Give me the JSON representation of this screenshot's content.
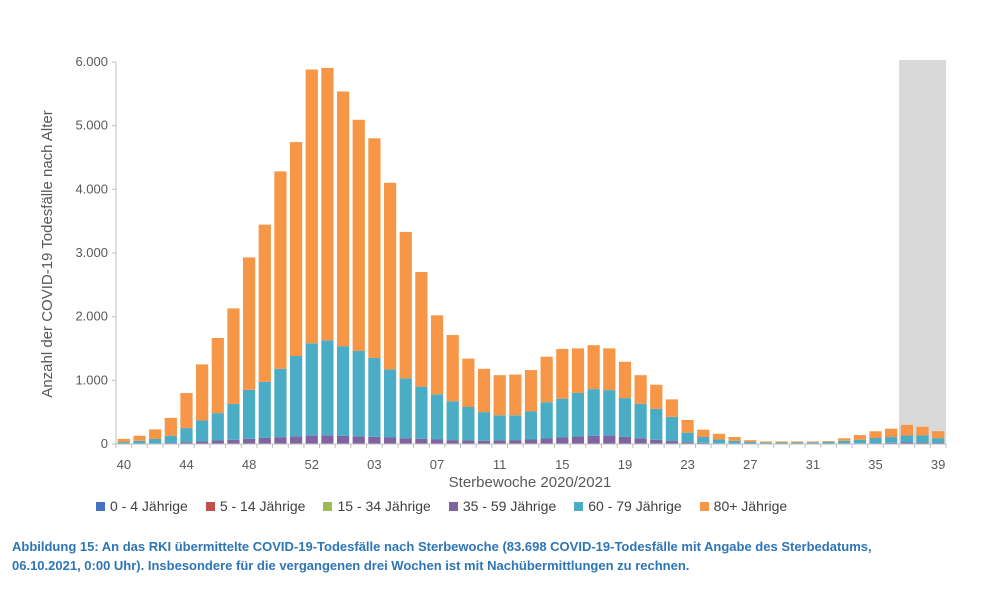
{
  "chart_data": {
    "type": "bar",
    "stacked": true,
    "title": "",
    "xlabel": "Sterbewoche 2020/2021",
    "ylabel": "Anzahl der COVID-19 Todesfälle nach Alter",
    "ylim": [
      0,
      6000
    ],
    "yticks": [
      0,
      1000,
      2000,
      3000,
      4000,
      5000,
      6000
    ],
    "ytick_labels": [
      "0",
      "1.000",
      "2.000",
      "3.000",
      "4.000",
      "5.000",
      "6.000"
    ],
    "xtick_labels": [
      "40",
      "44",
      "48",
      "52",
      "03",
      "07",
      "11",
      "15",
      "19",
      "23",
      "27",
      "31",
      "35",
      "39"
    ],
    "xtick_every": 4,
    "grid": false,
    "legend_position": "bottom",
    "shaded_last_weeks": 3,
    "categories": [
      "40",
      "41",
      "42",
      "43",
      "44",
      "45",
      "46",
      "47",
      "48",
      "49",
      "50",
      "51",
      "52",
      "53",
      "01",
      "02",
      "03",
      "04",
      "05",
      "06",
      "07",
      "08",
      "09",
      "10",
      "11",
      "12",
      "13",
      "14",
      "15",
      "16",
      "17",
      "18",
      "19",
      "20",
      "21",
      "22",
      "23",
      "24",
      "25",
      "26",
      "27",
      "28",
      "29",
      "30",
      "31",
      "32",
      "33",
      "34",
      "35",
      "36",
      "37",
      "38",
      "39"
    ],
    "series": [
      {
        "name": "0 - 4 Jährige",
        "color": "#4472c4",
        "values": [
          0,
          0,
          0,
          0,
          0,
          0,
          0,
          0,
          0,
          0,
          0,
          0,
          0,
          0,
          0,
          0,
          0,
          0,
          0,
          0,
          0,
          0,
          0,
          0,
          0,
          0,
          0,
          0,
          0,
          0,
          0,
          0,
          0,
          0,
          0,
          0,
          0,
          0,
          0,
          0,
          0,
          0,
          0,
          0,
          0,
          0,
          0,
          0,
          0,
          0,
          0,
          0,
          0
        ]
      },
      {
        "name": "5 - 14 Jährige",
        "color": "#c0504d",
        "values": [
          0,
          0,
          0,
          0,
          0,
          0,
          0,
          0,
          0,
          0,
          0,
          0,
          0,
          0,
          0,
          0,
          0,
          0,
          0,
          0,
          0,
          0,
          0,
          0,
          0,
          0,
          0,
          0,
          0,
          0,
          0,
          0,
          0,
          0,
          0,
          0,
          0,
          0,
          0,
          0,
          0,
          0,
          0,
          0,
          0,
          0,
          0,
          0,
          0,
          0,
          0,
          0,
          0
        ]
      },
      {
        "name": "15 - 34 Jährige",
        "color": "#9bbb59",
        "values": [
          0,
          0,
          0,
          0,
          0,
          0,
          0,
          0,
          1,
          1,
          2,
          2,
          2,
          2,
          2,
          2,
          2,
          2,
          1,
          1,
          1,
          1,
          1,
          1,
          1,
          1,
          1,
          1,
          2,
          2,
          2,
          2,
          1,
          1,
          1,
          1,
          0,
          0,
          0,
          0,
          0,
          0,
          0,
          0,
          0,
          0,
          0,
          0,
          0,
          1,
          1,
          1,
          1
        ]
      },
      {
        "name": "35 - 59 Jährige",
        "color": "#8064a2",
        "values": [
          3,
          5,
          8,
          15,
          25,
          40,
          55,
          65,
          80,
          95,
          105,
          120,
          130,
          135,
          125,
          120,
          110,
          100,
          90,
          80,
          70,
          60,
          55,
          50,
          55,
          60,
          70,
          85,
          100,
          115,
          125,
          130,
          110,
          90,
          65,
          45,
          28,
          18,
          10,
          6,
          4,
          3,
          3,
          3,
          4,
          5,
          8,
          10,
          14,
          18,
          22,
          20,
          15
        ]
      },
      {
        "name": "60 - 79 Jährige",
        "color": "#4bacc6",
        "values": [
          27,
          45,
          72,
          115,
          225,
          330,
          430,
          565,
          770,
          880,
          1075,
          1260,
          1450,
          1490,
          1410,
          1340,
          1240,
          1070,
          940,
          820,
          710,
          610,
          525,
          450,
          395,
          390,
          440,
          570,
          610,
          685,
          735,
          715,
          610,
          540,
          485,
          380,
          150,
          92,
          60,
          44,
          28,
          19,
          20,
          20,
          22,
          26,
          43,
          55,
          80,
          90,
          110,
          115,
          75
        ]
      },
      {
        "name": "80+ Jährige",
        "color": "#f79646",
        "values": [
          50,
          80,
          150,
          280,
          550,
          880,
          1180,
          1500,
          2080,
          2470,
          3100,
          3360,
          4300,
          4280,
          4000,
          3630,
          3450,
          2930,
          2300,
          1800,
          1240,
          1040,
          760,
          680,
          630,
          640,
          650,
          715,
          780,
          700,
          690,
          655,
          570,
          450,
          380,
          275,
          200,
          115,
          90,
          60,
          28,
          18,
          17,
          17,
          14,
          14,
          39,
          75,
          106,
          132,
          168,
          135,
          110
        ]
      }
    ]
  },
  "caption": "Abbildung 15: An das RKI übermittelte COVID-19-Todesfälle nach Sterbewoche (83.698 COVID-19-Todesfälle mit Angabe des Sterbedatums, 06.10.2021, 0:00 Uhr). Insbesondere für die vergangenen drei Wochen ist mit Nachübermittlungen zu rechnen."
}
